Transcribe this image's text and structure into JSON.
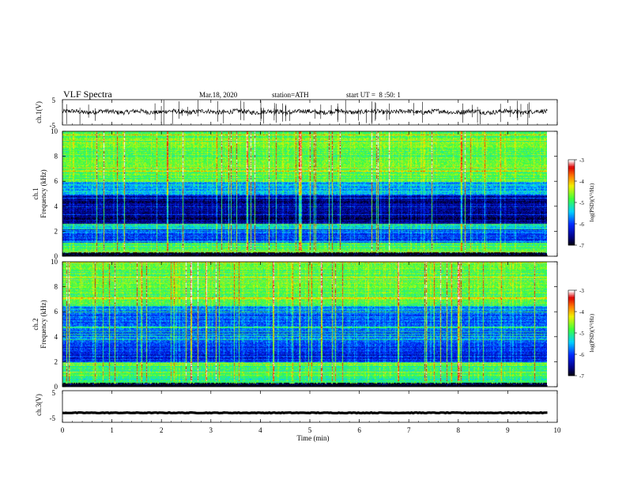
{
  "header": {
    "title": "VLF Spectra",
    "date": "Mar.18, 2020",
    "station": "station=ATH",
    "start_time": "start UT =  8 :50: 1"
  },
  "chart_data": [
    {
      "id": "ch1-waveform",
      "type": "line",
      "ylabel": "ch.1(V)",
      "ylim": [
        -5,
        5
      ],
      "yticks": [
        "5",
        "-5"
      ],
      "xlim": [
        0,
        10
      ],
      "data_end_min": 9.8,
      "baseline_v": 0.2,
      "noise_amplitude_v": 0.9,
      "spike_count": 55,
      "color": "#000000"
    },
    {
      "id": "ch1-spectrogram",
      "type": "heatmap",
      "ylabel": "ch.1 Frequency (kHz)",
      "ylim": [
        0,
        10
      ],
      "yticks": [
        "10",
        "8",
        "6",
        "4",
        "2",
        "0"
      ],
      "xlim": [
        0,
        10
      ],
      "data_end_min": 9.8,
      "bands": [
        {
          "from_khz": 0.0,
          "to_khz": 0.3,
          "log_psd": -6.9
        },
        {
          "from_khz": 0.3,
          "to_khz": 1.1,
          "log_psd": -5.0
        },
        {
          "from_khz": 1.1,
          "to_khz": 2.2,
          "log_psd": -6.0
        },
        {
          "from_khz": 2.2,
          "to_khz": 2.6,
          "log_psd": -5.2
        },
        {
          "from_khz": 2.6,
          "to_khz": 5.0,
          "log_psd": -6.6
        },
        {
          "from_khz": 5.0,
          "to_khz": 6.0,
          "log_psd": -5.5
        },
        {
          "from_khz": 6.0,
          "to_khz": 10.0,
          "log_psd": -4.8
        }
      ],
      "colorbar": {
        "label": "log(PSD)(V²/Hz)",
        "min": -7,
        "max": -3,
        "ticks": [
          "-3",
          "-4",
          "-5",
          "-6",
          "-7"
        ]
      }
    },
    {
      "id": "ch2-spectrogram",
      "type": "heatmap",
      "ylabel": "ch.2 Frequency (kHz)",
      "ylim": [
        0,
        10
      ],
      "yticks": [
        "10",
        "8",
        "6",
        "4",
        "2",
        "0"
      ],
      "xlim": [
        0,
        10
      ],
      "data_end_min": 9.8,
      "bands": [
        {
          "from_khz": 0.0,
          "to_khz": 0.3,
          "log_psd": -6.9
        },
        {
          "from_khz": 0.3,
          "to_khz": 2.0,
          "log_psd": -5.0
        },
        {
          "from_khz": 2.0,
          "to_khz": 3.5,
          "log_psd": -6.1
        },
        {
          "from_khz": 3.5,
          "to_khz": 6.5,
          "log_psd": -5.8
        },
        {
          "from_khz": 6.5,
          "to_khz": 10.0,
          "log_psd": -4.8
        }
      ],
      "colorbar": {
        "label": "log(PSD)(V²/Hz)",
        "min": -7,
        "max": -3,
        "ticks": [
          "-3",
          "-4",
          "-5",
          "-6",
          "-7"
        ]
      }
    },
    {
      "id": "ch3-waveform",
      "type": "line",
      "ylabel": "ch.3(V)",
      "ylim": [
        -5,
        5
      ],
      "yticks": [
        "5",
        "-5"
      ],
      "xlim": [
        0,
        10
      ],
      "data_end_min": 9.8,
      "baseline_v": -2.0,
      "noise_amplitude_v": 0.1,
      "color": "#000000"
    }
  ],
  "xaxis": {
    "label": "Time (min)",
    "ticks": [
      "0",
      "1",
      "2",
      "3",
      "4",
      "5",
      "6",
      "7",
      "8",
      "9",
      "10"
    ]
  }
}
